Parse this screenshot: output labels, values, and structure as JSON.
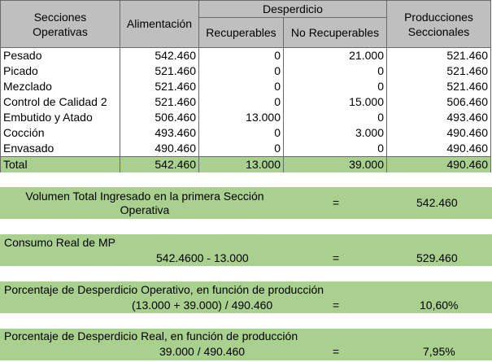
{
  "table": {
    "headers": {
      "section": "Secciones\nOperativas",
      "input": "Alimentación",
      "waste": "Desperdicio",
      "recoverable": "Recuperables",
      "non_recoverable": "No Recuperables",
      "output": "Producciones\nSeccionales"
    },
    "rows": [
      {
        "name": "Pesado",
        "input": "542.460",
        "rec": "0",
        "nonrec": "21.000",
        "out": "521.460"
      },
      {
        "name": "Picado",
        "input": "521.460",
        "rec": "0",
        "nonrec": "0",
        "out": "521.460"
      },
      {
        "name": "Mezclado",
        "input": "521.460",
        "rec": "0",
        "nonrec": "0",
        "out": "521.460"
      },
      {
        "name": "Control de Calidad 2",
        "input": "521.460",
        "rec": "0",
        "nonrec": "15.000",
        "out": "506.460"
      },
      {
        "name": "Embutido y Atado",
        "input": "506.460",
        "rec": "13.000",
        "nonrec": "0",
        "out": "493.460"
      },
      {
        "name": "Cocción",
        "input": "493.460",
        "rec": "0",
        "nonrec": "3.000",
        "out": "490.460"
      },
      {
        "name": "Envasado",
        "input": "490.460",
        "rec": "0",
        "nonrec": "0",
        "out": "490.460"
      }
    ],
    "total": {
      "name": "Total",
      "input": "542.460",
      "rec": "13.000",
      "nonrec": "39.000",
      "out": "490.460"
    }
  },
  "summary": {
    "volume": {
      "label_line1": "Volumen Total Ingresado en la primera Sección",
      "label_line2": "Operativa",
      "eq": "=",
      "value": "542.460"
    },
    "consumption": {
      "label": "Consumo Real de MP",
      "formula": "542.4600 - 13.000",
      "eq": "=",
      "value": "529.460"
    },
    "op_waste": {
      "label": "Porcentaje de Desperdicio Operativo, en función de producción",
      "formula": "(13.000 + 39.000) / 490.460",
      "eq": "=",
      "value": "10,60%"
    },
    "real_waste": {
      "label": "Porcentaje de Desperdicio Real, en función de producción",
      "formula": "39.000 / 490.460",
      "eq": "=",
      "value": "7,95%"
    }
  },
  "colors": {
    "header_gray": "#bfbfbf",
    "highlight_green": "#a9d08e",
    "grid": "#6b6b6b"
  }
}
